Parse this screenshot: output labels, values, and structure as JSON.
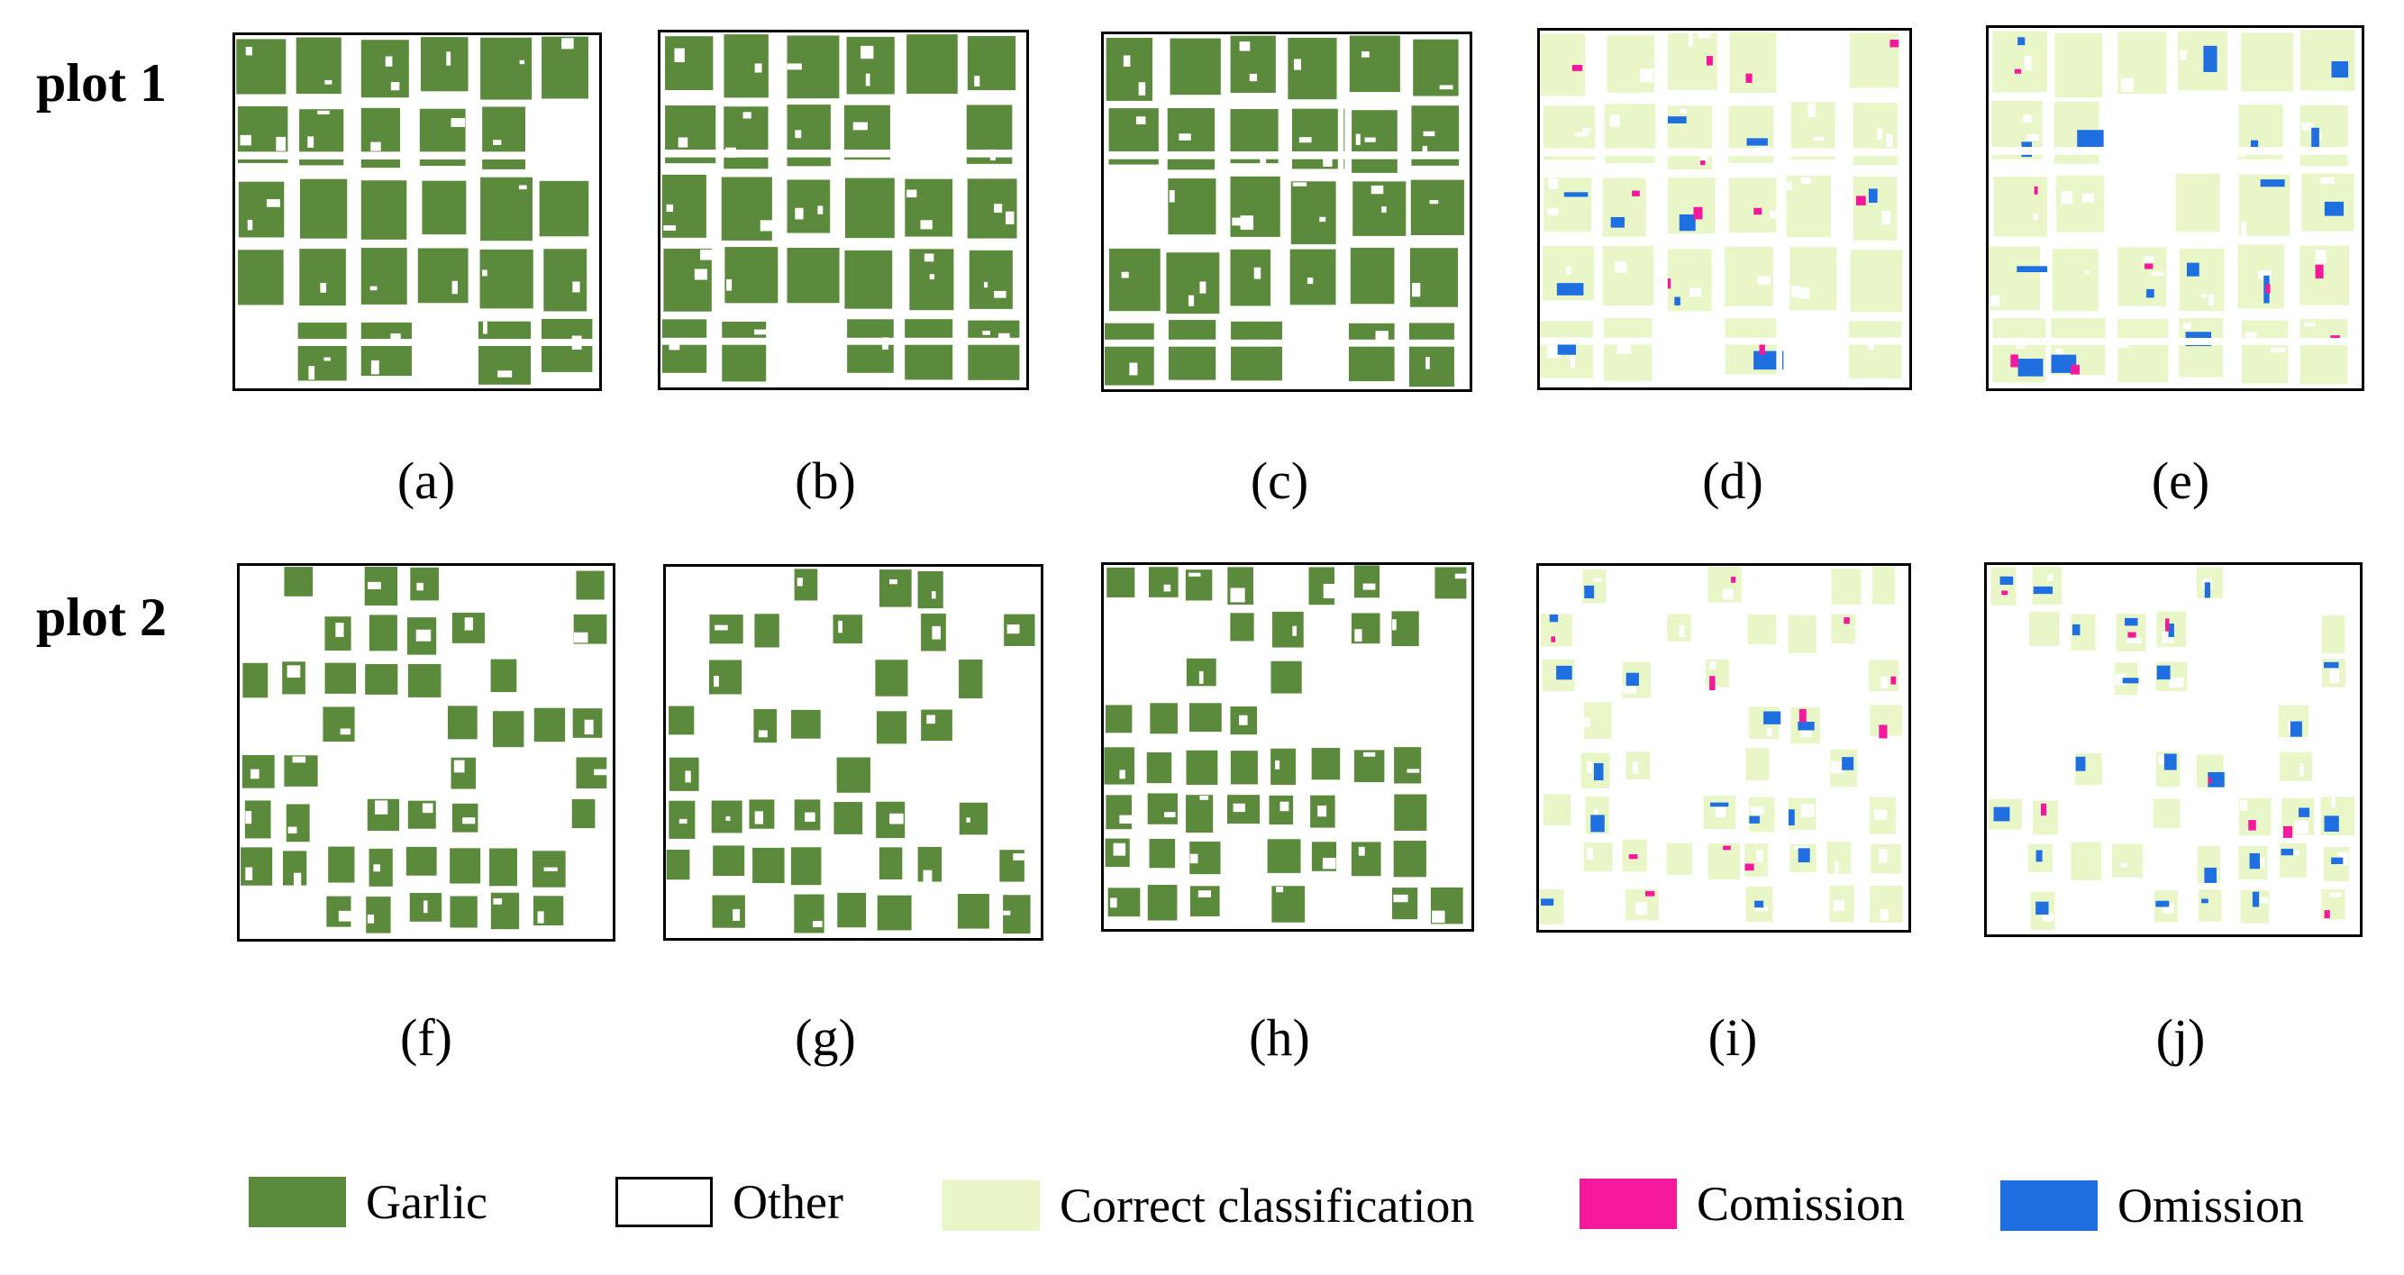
{
  "rows": [
    {
      "label": "plot 1"
    },
    {
      "label": "plot 2"
    }
  ],
  "captions": [
    "(a)",
    "(b)",
    "(c)",
    "(d)",
    "(e)",
    "(f)",
    "(g)",
    "(h)",
    "(i)",
    "(j)"
  ],
  "legend": [
    {
      "label": "Garlic",
      "color": "#5B8A3C",
      "border": "#5B8A3C"
    },
    {
      "label": "Other",
      "color": "#FFFFFF",
      "border": "#000000"
    },
    {
      "label": "Correct classification",
      "color": "#E8F6C8",
      "border": "#E8F6C8"
    },
    {
      "label": "Comission",
      "color": "#F5189C",
      "border": "#F5189C"
    },
    {
      "label": "Omission",
      "color": "#1F6FE0",
      "border": "#1F6FE0"
    }
  ],
  "colors": {
    "garlic": "#5B8A3C",
    "other": "#FFFFFF",
    "correct": "#E8F6C8",
    "comission": "#F5189C",
    "omission": "#1F6FE0"
  },
  "panels": [
    {
      "id": "a",
      "kind": "map",
      "plot": 1
    },
    {
      "id": "b",
      "kind": "map",
      "plot": 1
    },
    {
      "id": "c",
      "kind": "map",
      "plot": 1
    },
    {
      "id": "d",
      "kind": "error",
      "plot": 1
    },
    {
      "id": "e",
      "kind": "error",
      "plot": 1
    },
    {
      "id": "f",
      "kind": "map",
      "plot": 2
    },
    {
      "id": "g",
      "kind": "map",
      "plot": 2
    },
    {
      "id": "h",
      "kind": "map",
      "plot": 2
    },
    {
      "id": "i",
      "kind": "error",
      "plot": 2
    },
    {
      "id": "j",
      "kind": "error",
      "plot": 2
    }
  ]
}
